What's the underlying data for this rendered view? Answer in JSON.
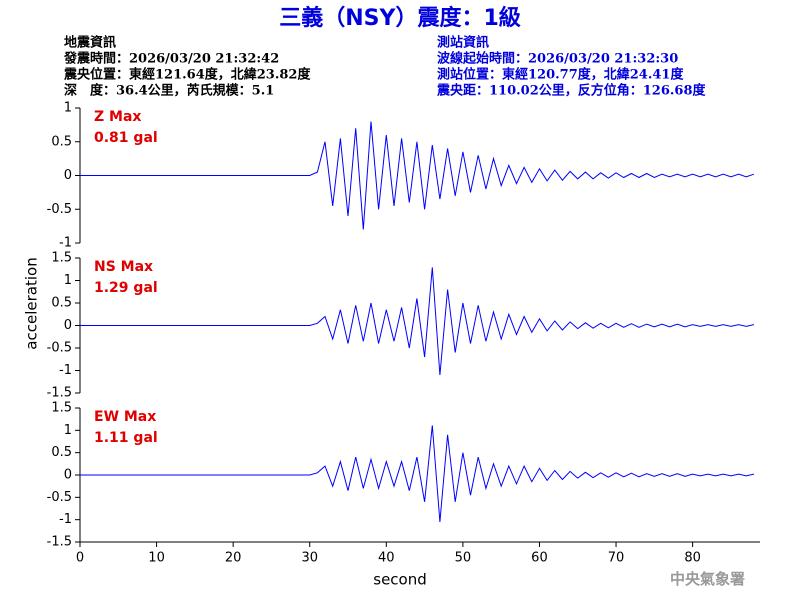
{
  "header": {
    "title": "三義（NSY）震度：1級",
    "left": [
      "地震資訊",
      "發震時間：2026/03/20 21:32:42",
      "震央位置：東經121.64度，北緯23.82度",
      "深　度：36.4公里，芮氏規模：5.1"
    ],
    "right": [
      "測站資訊",
      "波線起始時間：2026/03/20 21:32:30",
      "測站位置：東經120.77度，北緯24.41度",
      "震央距：110.02公里，反方位角：126.68度"
    ],
    "footer": "中央氣象署"
  },
  "chart_data": [
    {
      "type": "line",
      "label": "Z Max",
      "max_label": "0.81 gal",
      "color": "#0000ff",
      "x": [
        0,
        1,
        2,
        3,
        4,
        5,
        6,
        7,
        8,
        9,
        10,
        11,
        12,
        13,
        14,
        15,
        16,
        17,
        18,
        19,
        20,
        21,
        22,
        23,
        24,
        25,
        26,
        27,
        28,
        29,
        30,
        31,
        32,
        33,
        34,
        35,
        36,
        37,
        38,
        39,
        40,
        41,
        42,
        43,
        44,
        45,
        46,
        47,
        48,
        49,
        50,
        51,
        52,
        53,
        54,
        55,
        56,
        57,
        58,
        59,
        60,
        61,
        62,
        63,
        64,
        65,
        66,
        67,
        68,
        69,
        70,
        71,
        72,
        73,
        74,
        75,
        76,
        77,
        78,
        79,
        80,
        81,
        82,
        83,
        84,
        85,
        86,
        87,
        88
      ],
      "values": [
        0,
        0,
        0,
        0,
        0,
        0,
        0,
        0,
        0,
        0,
        0,
        0,
        0,
        0,
        0,
        0,
        0,
        0,
        0,
        0,
        0,
        0,
        0,
        0,
        0,
        0,
        0,
        0,
        0,
        0,
        0,
        0.05,
        0.5,
        -0.45,
        0.55,
        -0.6,
        0.7,
        -0.8,
        0.8,
        -0.5,
        0.6,
        -0.45,
        0.55,
        -0.4,
        0.5,
        -0.5,
        0.45,
        -0.35,
        0.4,
        -0.3,
        0.35,
        -0.25,
        0.3,
        -0.2,
        0.25,
        -0.15,
        0.15,
        -0.12,
        0.12,
        -0.1,
        0.1,
        -0.08,
        0.08,
        -0.07,
        0.06,
        -0.05,
        0.05,
        -0.05,
        0.04,
        -0.04,
        0.04,
        -0.03,
        0.03,
        -0.03,
        0.03,
        -0.03,
        0.02,
        -0.02,
        0.02,
        -0.02,
        0.02,
        -0.02,
        0.02,
        -0.02,
        0.02,
        -0.02,
        0.02,
        -0.02,
        0.02
      ],
      "xlim": [
        0,
        88.8
      ],
      "ylim": [
        -1,
        1
      ],
      "yticks": [
        -1,
        -0.5,
        0,
        0.5,
        1
      ]
    },
    {
      "type": "line",
      "label": "NS Max",
      "max_label": "1.29 gal",
      "color": "#0000ff",
      "ylabel": "acceleration",
      "x": [
        0,
        1,
        2,
        3,
        4,
        5,
        6,
        7,
        8,
        9,
        10,
        11,
        12,
        13,
        14,
        15,
        16,
        17,
        18,
        19,
        20,
        21,
        22,
        23,
        24,
        25,
        26,
        27,
        28,
        29,
        30,
        31,
        32,
        33,
        34,
        35,
        36,
        37,
        38,
        39,
        40,
        41,
        42,
        43,
        44,
        45,
        46,
        47,
        48,
        49,
        50,
        51,
        52,
        53,
        54,
        55,
        56,
        57,
        58,
        59,
        60,
        61,
        62,
        63,
        64,
        65,
        66,
        67,
        68,
        69,
        70,
        71,
        72,
        73,
        74,
        75,
        76,
        77,
        78,
        79,
        80,
        81,
        82,
        83,
        84,
        85,
        86,
        87,
        88
      ],
      "values": [
        0,
        0,
        0,
        0,
        0,
        0,
        0,
        0,
        0,
        0,
        0,
        0,
        0,
        0,
        0,
        0,
        0,
        0,
        0,
        0,
        0,
        0,
        0,
        0,
        0,
        0,
        0,
        0,
        0,
        0,
        0,
        0.05,
        0.2,
        -0.3,
        0.35,
        -0.4,
        0.45,
        -0.35,
        0.5,
        -0.4,
        0.35,
        -0.35,
        0.4,
        -0.5,
        0.6,
        -0.7,
        1.29,
        -1.1,
        0.8,
        -0.6,
        0.5,
        -0.4,
        0.45,
        -0.35,
        0.3,
        -0.3,
        0.25,
        -0.2,
        0.2,
        -0.15,
        0.15,
        -0.12,
        0.1,
        -0.1,
        0.08,
        -0.07,
        0.06,
        -0.06,
        0.05,
        -0.05,
        0.05,
        -0.04,
        0.04,
        -0.04,
        0.03,
        -0.03,
        0.03,
        -0.03,
        0.03,
        -0.03,
        0.02,
        -0.02,
        0.02,
        -0.02,
        0.02,
        -0.02,
        0.02,
        -0.02,
        0.02
      ],
      "xlim": [
        0,
        88.8
      ],
      "ylim": [
        -1.5,
        1.5
      ],
      "yticks": [
        -1.5,
        -1,
        -0.5,
        0,
        0.5,
        1,
        1.5
      ]
    },
    {
      "type": "line",
      "label": "EW Max",
      "max_label": "1.11 gal",
      "color": "#0000ff",
      "xlabel": "second",
      "x": [
        0,
        1,
        2,
        3,
        4,
        5,
        6,
        7,
        8,
        9,
        10,
        11,
        12,
        13,
        14,
        15,
        16,
        17,
        18,
        19,
        20,
        21,
        22,
        23,
        24,
        25,
        26,
        27,
        28,
        29,
        30,
        31,
        32,
        33,
        34,
        35,
        36,
        37,
        38,
        39,
        40,
        41,
        42,
        43,
        44,
        45,
        46,
        47,
        48,
        49,
        50,
        51,
        52,
        53,
        54,
        55,
        56,
        57,
        58,
        59,
        60,
        61,
        62,
        63,
        64,
        65,
        66,
        67,
        68,
        69,
        70,
        71,
        72,
        73,
        74,
        75,
        76,
        77,
        78,
        79,
        80,
        81,
        82,
        83,
        84,
        85,
        86,
        87,
        88
      ],
      "values": [
        0,
        0,
        0,
        0,
        0,
        0,
        0,
        0,
        0,
        0,
        0,
        0,
        0,
        0,
        0,
        0,
        0,
        0,
        0,
        0,
        0,
        0,
        0,
        0,
        0,
        0,
        0,
        0,
        0,
        0,
        0,
        0.05,
        0.2,
        -0.25,
        0.3,
        -0.35,
        0.4,
        -0.3,
        0.35,
        -0.3,
        0.3,
        -0.25,
        0.3,
        -0.35,
        0.4,
        -0.6,
        1.11,
        -1.05,
        0.9,
        -0.6,
        0.5,
        -0.45,
        0.4,
        -0.3,
        0.25,
        -0.25,
        0.2,
        -0.2,
        0.2,
        -0.15,
        0.15,
        -0.12,
        0.1,
        -0.1,
        0.08,
        -0.07,
        0.06,
        -0.06,
        0.05,
        -0.05,
        0.05,
        -0.04,
        0.04,
        -0.04,
        0.03,
        -0.03,
        0.03,
        -0.03,
        0.03,
        -0.03,
        0.02,
        -0.02,
        0.02,
        -0.02,
        0.02,
        -0.02,
        0.02,
        -0.02,
        0.02
      ],
      "xlim": [
        0,
        88.8
      ],
      "ylim": [
        -1.5,
        1.5
      ],
      "yticks": [
        -1.5,
        -1,
        -0.5,
        0,
        0.5,
        1,
        1.5
      ],
      "xticks": [
        0,
        10,
        20,
        30,
        40,
        50,
        60,
        70,
        80
      ]
    }
  ]
}
